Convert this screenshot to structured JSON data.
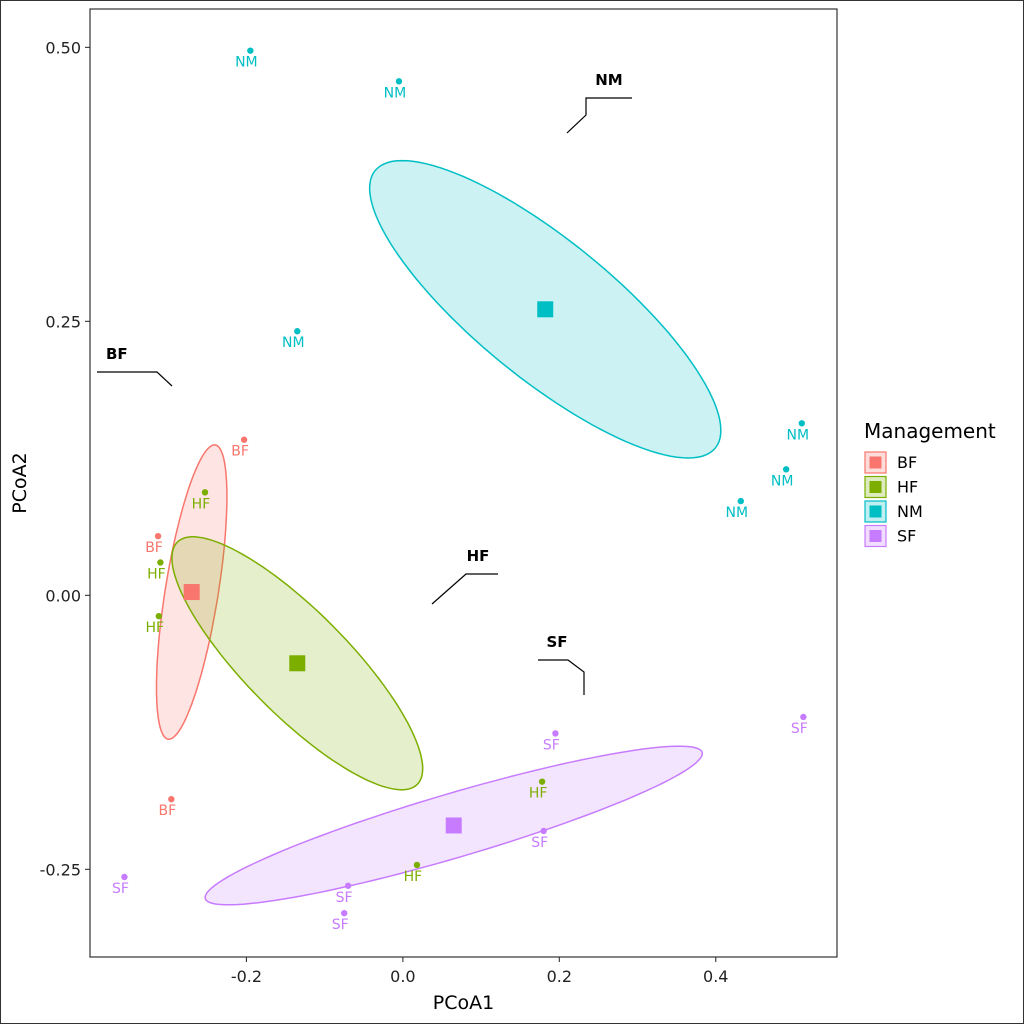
{
  "chart_data": {
    "type": "scatter",
    "title": "",
    "xlabel": "PCoA1",
    "ylabel": "PCoA2",
    "xlim": [
      -0.4,
      0.555
    ],
    "ylim": [
      -0.33,
      0.535
    ],
    "x_ticks": [
      -0.2,
      0.0,
      0.2,
      0.4
    ],
    "x_tick_labels": [
      "-0.2",
      "0.0",
      "0.2",
      "0.4"
    ],
    "y_ticks": [
      -0.25,
      0.0,
      0.25,
      0.5
    ],
    "y_tick_labels": [
      "-0.25",
      "0.00",
      "0.25",
      "0.50"
    ],
    "grid": false,
    "legend": {
      "title": "Management",
      "position": "right",
      "entries": [
        "BF",
        "HF",
        "NM",
        "SF"
      ]
    },
    "series": [
      {
        "name": "BF",
        "color": "#F8766D",
        "points": [
          {
            "x": -0.203,
            "y": 0.142,
            "label": "BF"
          },
          {
            "x": -0.313,
            "y": 0.054,
            "label": "BF"
          },
          {
            "x": -0.296,
            "y": -0.186,
            "label": "BF"
          }
        ],
        "centroid": {
          "x": -0.27,
          "y": 0.003
        },
        "ellipse": {
          "center": {
            "x": -0.27,
            "y": 0.003
          },
          "rx": 0.298,
          "ry": 0.053,
          "angle_deg": 80.9
        },
        "annotation": "BF"
      },
      {
        "name": "HF",
        "color": "#7CAE00",
        "points": [
          {
            "x": -0.253,
            "y": 0.094,
            "label": "HF"
          },
          {
            "x": -0.31,
            "y": 0.03,
            "label": "HF"
          },
          {
            "x": -0.312,
            "y": -0.019,
            "label": "HF"
          },
          {
            "x": 0.178,
            "y": -0.17,
            "label": "HF"
          },
          {
            "x": 0.018,
            "y": -0.246,
            "label": "HF"
          }
        ],
        "centroid": {
          "x": -0.135,
          "y": -0.062
        },
        "ellipse": {
          "center": {
            "x": -0.135,
            "y": -0.062
          },
          "rx": 0.341,
          "ry": 0.103,
          "angle_deg": -45.3
        },
        "annotation": "HF"
      },
      {
        "name": "NM",
        "color": "#00BFC4",
        "points": [
          {
            "x": -0.195,
            "y": 0.497,
            "label": "NM"
          },
          {
            "x": -0.005,
            "y": 0.469,
            "label": "NM"
          },
          {
            "x": -0.135,
            "y": 0.241,
            "label": "NM"
          },
          {
            "x": 0.51,
            "y": 0.157,
            "label": "NM"
          },
          {
            "x": 0.49,
            "y": 0.115,
            "label": "NM"
          },
          {
            "x": 0.432,
            "y": 0.086,
            "label": "NM"
          }
        ],
        "centroid": {
          "x": 0.182,
          "y": 0.261
        },
        "ellipse": {
          "center": {
            "x": 0.182,
            "y": 0.261
          },
          "rx": 0.439,
          "ry": 0.138,
          "angle_deg": -39.2
        },
        "annotation": "NM"
      },
      {
        "name": "SF",
        "color": "#C77CFF",
        "points": [
          {
            "x": 0.195,
            "y": -0.126,
            "label": "SF"
          },
          {
            "x": 0.512,
            "y": -0.111,
            "label": "SF"
          },
          {
            "x": 0.18,
            "y": -0.215,
            "label": "SF"
          },
          {
            "x": -0.356,
            "y": -0.257,
            "label": "SF"
          },
          {
            "x": -0.07,
            "y": -0.265,
            "label": "SF"
          },
          {
            "x": -0.075,
            "y": -0.29,
            "label": "SF"
          }
        ],
        "centroid": {
          "x": 0.065,
          "y": -0.21
        },
        "ellipse": {
          "center": {
            "x": 0.065,
            "y": -0.21
          },
          "rx": 0.518,
          "ry": 0.064,
          "angle_deg": 16.4
        },
        "annotation": "SF"
      }
    ]
  }
}
